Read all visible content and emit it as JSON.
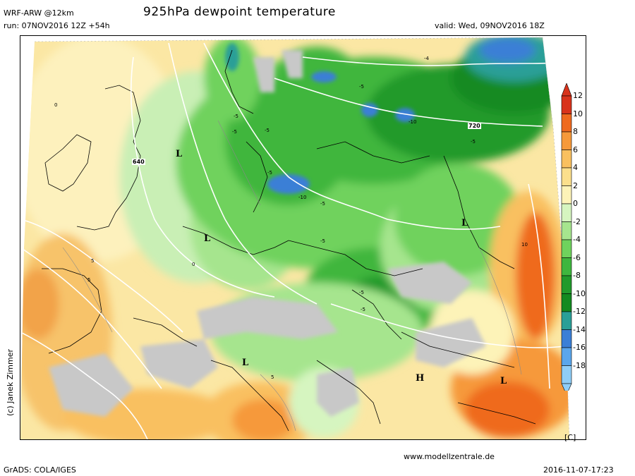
{
  "header": {
    "model": "WRF-ARW @12km",
    "run": "run: 07NOV2016 12Z +54h",
    "title": "925hPa dewpoint temperature",
    "valid": "valid: Wed, 09NOV2016 18Z"
  },
  "footer": {
    "grads": "GrADS: COLA/IGES",
    "website": "www.modellzentrale.de",
    "timestamp": "2016-11-07-17:23",
    "credit": "(c) Janek Zimmer"
  },
  "legend": {
    "unit": "[C]",
    "stops": [
      {
        "label": "12",
        "color": "#d8331c"
      },
      {
        "label": "10",
        "color": "#ef6a1f"
      },
      {
        "label": "8",
        "color": "#f6993a"
      },
      {
        "label": "6",
        "color": "#f9c060"
      },
      {
        "label": "4",
        "color": "#fbdf8c"
      },
      {
        "label": "2",
        "color": "#fdf3b8"
      },
      {
        "label": "0",
        "color": "#d6f5c0"
      },
      {
        "label": "-2",
        "color": "#a6e58e"
      },
      {
        "label": "-4",
        "color": "#6fd25d"
      },
      {
        "label": "-6",
        "color": "#3fb63e"
      },
      {
        "label": "-8",
        "color": "#219a2b"
      },
      {
        "label": "-10",
        "color": "#138a20"
      },
      {
        "label": "-12",
        "color": "#2a9f97"
      },
      {
        "label": "-14",
        "color": "#3b7fd6"
      },
      {
        "label": "-16",
        "color": "#5aa6ec"
      },
      {
        "label": "-18",
        "color": "#8fcdf7"
      }
    ]
  },
  "map": {
    "pressure_centers": [
      {
        "label": "L"
      },
      {
        "label": "L"
      },
      {
        "label": "L"
      },
      {
        "label": "L"
      },
      {
        "label": "H"
      },
      {
        "label": "L"
      }
    ],
    "isohypse_labels": [
      "640",
      "720"
    ],
    "dewpoint_labels": [
      "-5",
      "-5",
      "-5",
      "-10",
      "-5",
      "-5",
      "-10",
      "-5",
      "-5",
      "-5",
      "-5",
      "-5",
      "0",
      "0",
      "5",
      "5",
      "5",
      "10",
      "-4"
    ]
  }
}
